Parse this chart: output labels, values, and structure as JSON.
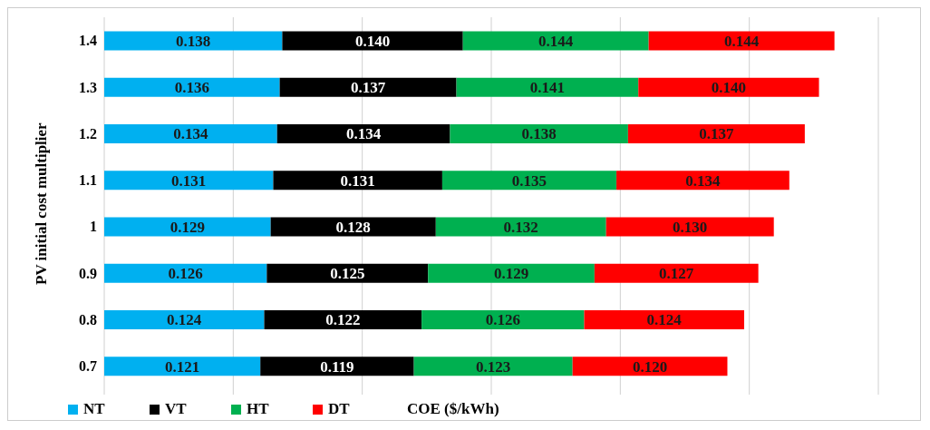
{
  "chart_data": {
    "type": "bar",
    "orientation": "horizontal",
    "stacked": true,
    "ylabel": "PV initial cost multiplier",
    "xlabel": "COE ($/kWh)",
    "categories": [
      "1.4",
      "1.3",
      "1.2",
      "1.1",
      "1",
      "0.9",
      "0.8",
      "0.7"
    ],
    "series": [
      {
        "name": "NT",
        "color": "#00b0f0",
        "values": [
          0.138,
          0.136,
          0.134,
          0.131,
          0.129,
          0.126,
          0.124,
          0.121
        ],
        "value_labels": [
          "0.138",
          "0.136",
          "0.134",
          "0.131",
          "0.129",
          "0.126",
          "0.124",
          "0.121"
        ]
      },
      {
        "name": "VT",
        "color": "#000000",
        "values": [
          0.14,
          0.137,
          0.134,
          0.131,
          0.128,
          0.125,
          0.122,
          0.119
        ],
        "value_labels": [
          "0.140",
          "0.137",
          "0.134",
          "0.131",
          "0.128",
          "0.125",
          "0.122",
          "0.119"
        ]
      },
      {
        "name": "HT",
        "color": "#00b050",
        "values": [
          0.144,
          0.141,
          0.138,
          0.135,
          0.132,
          0.129,
          0.126,
          0.123
        ],
        "value_labels": [
          "0.144",
          "0.141",
          "0.138",
          "0.135",
          "0.132",
          "0.129",
          "0.126",
          "0.123"
        ]
      },
      {
        "name": "DT",
        "color": "#ff0000",
        "values": [
          0.144,
          0.14,
          0.137,
          0.134,
          0.13,
          0.127,
          0.124,
          0.12
        ],
        "value_labels": [
          "0.144",
          "0.140",
          "0.137",
          "0.134",
          "0.130",
          "0.127",
          "0.124",
          "0.120"
        ]
      }
    ],
    "xlim": [
      0,
      0.6
    ],
    "xticks": [
      {
        "value": 0,
        "label": null
      },
      {
        "value": 0.1,
        "label": null
      },
      {
        "value": 0.2,
        "label": null
      },
      {
        "value": 0.3,
        "label": null
      },
      {
        "value": 0.4,
        "label": null
      },
      {
        "value": 0.5,
        "label": null
      },
      {
        "value": 0.6,
        "label": null
      }
    ],
    "tick_labels": "y",
    "grid": "x",
    "legend": "bottom"
  }
}
